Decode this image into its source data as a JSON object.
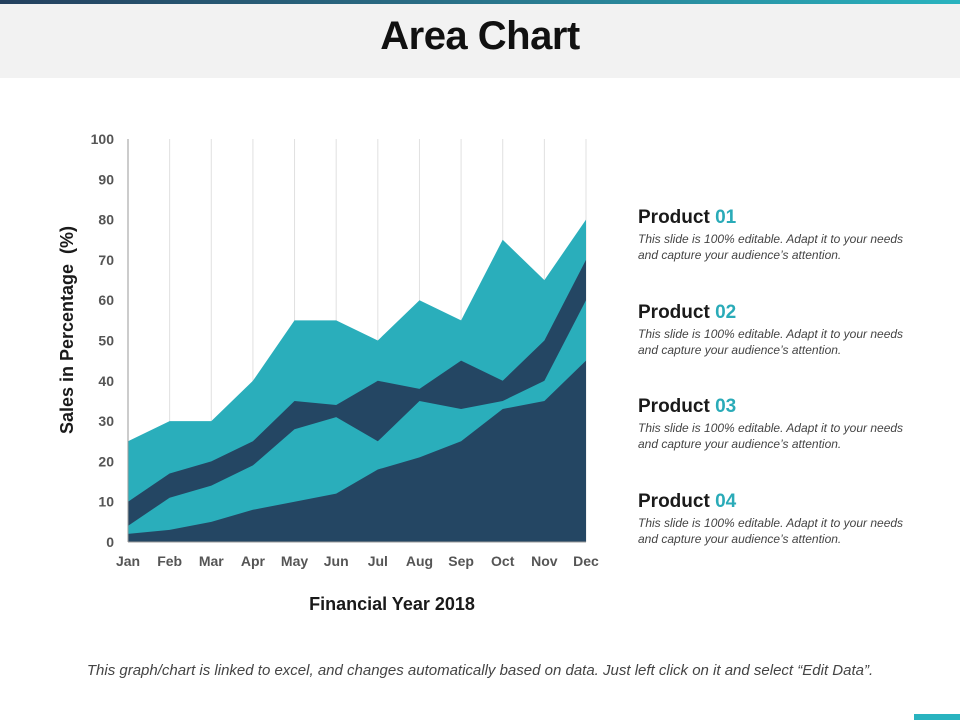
{
  "page": {
    "title": "Area Chart",
    "footer_note": "This graph/chart is linked to excel, and changes automatically based on data. Just left click on it and select “Edit Data”."
  },
  "legend": [
    {
      "label": "Product ",
      "number": "01",
      "description": "This slide is 100% editable. Adapt it to your needs and capture your audience’s attention."
    },
    {
      "label": "Product ",
      "number": "02",
      "description": "This slide is 100% editable. Adapt it to your needs and capture your audience’s attention."
    },
    {
      "label": "Product ",
      "number": "03",
      "description": "This slide is 100% editable. Adapt it to your needs and capture your audience’s attention."
    },
    {
      "label": "Product ",
      "number": "04",
      "description": "This slide is 100% editable. Adapt it to your needs and capture your audience’s attention."
    }
  ],
  "colors": {
    "teal": "#2aaebb",
    "navy": "#244663",
    "gridline": "#e0e0e0",
    "axis": "#9a9a9a",
    "tick_text": "#555555"
  },
  "chart_data": {
    "type": "area",
    "title": "",
    "xlabel": "Financial Year 2018",
    "ylabel": "Sales in Percentage  (%)",
    "categories": [
      "Jan",
      "Feb",
      "Mar",
      "Apr",
      "May",
      "Jun",
      "Jul",
      "Aug",
      "Sep",
      "Oct",
      "Nov",
      "Dec"
    ],
    "ylim": [
      0,
      100
    ],
    "yticks": [
      0,
      10,
      20,
      30,
      40,
      50,
      60,
      70,
      80,
      90,
      100
    ],
    "grid": "vertical",
    "series": [
      {
        "values": [
          25,
          30,
          30,
          40,
          55,
          55,
          50,
          60,
          55,
          75,
          65,
          80
        ],
        "color": "#2aaebb"
      },
      {
        "values": [
          10,
          17,
          20,
          25,
          35,
          34,
          40,
          38,
          45,
          40,
          50,
          70
        ],
        "color": "#244663"
      },
      {
        "values": [
          4,
          11,
          14,
          19,
          28,
          31,
          25,
          35,
          33,
          35,
          40,
          60
        ],
        "color": "#2aaebb"
      },
      {
        "values": [
          2,
          3,
          5,
          8,
          10,
          12,
          18,
          21,
          25,
          33,
          35,
          45
        ],
        "color": "#244663"
      }
    ]
  }
}
